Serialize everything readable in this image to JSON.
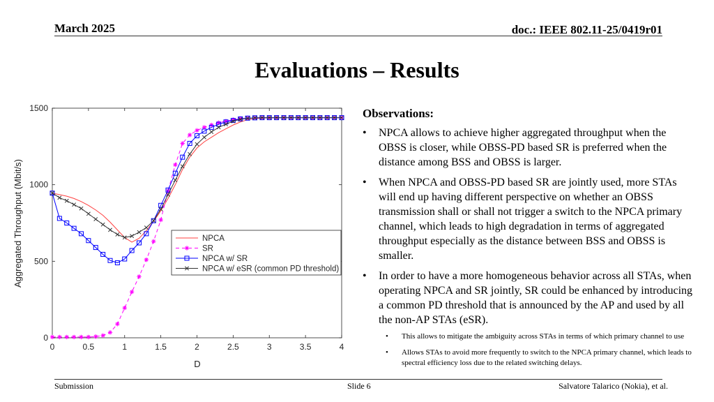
{
  "header": {
    "date": "March 2025",
    "doc_id": "doc.: IEEE 802.11-25/0419r01"
  },
  "title": "Evaluations – Results",
  "observations": {
    "heading": "Observations:",
    "bullets": [
      "NPCA allows to achieve higher aggregated throughput when the OBSS is closer, while OBSS-PD based SR is preferred when the distance among BSS and OBSS is larger.",
      "When NPCA and OBSS-PD based SR are jointly used, more STAs will end up having different perspective on whether an OBSS transmission shall or shall not trigger a switch to the NPCA primary channel, which leads to high degradation in terms of aggregated throughput especially as the distance between BSS and OBSS is smaller.",
      "In order to have a more homogeneous behavior across all STAs, when operating NPCA and SR jointly, SR could be enhanced by introducing a common PD threshold that is announced by the AP and used by all the non-AP STAs (eSR)."
    ],
    "sub_bullets": [
      "This allows to mitigate the ambiguity across STAs in terms of which primary channel to use",
      "Allows STAs to avoid more frequently to switch to the NPCA primary channel, which leads to spectral efficiency loss due to the related switching delays."
    ]
  },
  "footer": {
    "left": "Submission",
    "center": "Slide 6",
    "right": "Salvatore Talarico (Nokia), et al."
  },
  "chart_data": {
    "type": "line",
    "xlabel": "D",
    "ylabel": "Aggregated Throughput (Mbit/s)",
    "xlim": [
      0,
      4
    ],
    "ylim": [
      0,
      1500
    ],
    "xticks": [
      "0",
      "0.5",
      "1",
      "1.5",
      "2",
      "2.5",
      "3",
      "3.5",
      "4"
    ],
    "yticks": [
      "0",
      "500",
      "1000",
      "1500"
    ],
    "legend_position": "center-right",
    "x": [
      0,
      0.1,
      0.2,
      0.3,
      0.4,
      0.5,
      0.6,
      0.7,
      0.8,
      0.9,
      1.0,
      1.1,
      1.2,
      1.3,
      1.4,
      1.5,
      1.6,
      1.7,
      1.8,
      1.9,
      2.0,
      2.1,
      2.2,
      2.3,
      2.4,
      2.5,
      2.6,
      2.7,
      2.8,
      2.9,
      3.0,
      3.1,
      3.2,
      3.3,
      3.4,
      3.5,
      3.6,
      3.7,
      3.8,
      3.9,
      4.0
    ],
    "series": [
      {
        "name": "NPCA",
        "color": "#ff4040",
        "marker": "none",
        "dash": "solid",
        "values": [
          945,
          935,
          925,
          910,
          890,
          865,
          835,
          800,
          755,
          705,
          655,
          625,
          650,
          700,
          760,
          830,
          910,
          1000,
          1100,
          1180,
          1240,
          1280,
          1310,
          1340,
          1365,
          1390,
          1410,
          1425,
          1432,
          1435,
          1437,
          1438,
          1438,
          1438,
          1438,
          1438,
          1438,
          1438,
          1438,
          1438,
          1438
        ]
      },
      {
        "name": "SR",
        "color": "#ff00ff",
        "marker": "star",
        "dash": "dashed",
        "values": [
          5,
          5,
          5,
          5,
          5,
          5,
          8,
          15,
          35,
          90,
          195,
          300,
          400,
          510,
          630,
          770,
          960,
          1130,
          1270,
          1325,
          1355,
          1375,
          1390,
          1405,
          1415,
          1425,
          1432,
          1435,
          1437,
          1438,
          1438,
          1438,
          1438,
          1438,
          1438,
          1438,
          1438,
          1438,
          1438,
          1438,
          1438
        ]
      },
      {
        "name": "NPCA w/ SR",
        "color": "#0000ff",
        "marker": "square",
        "dash": "solid",
        "values": [
          945,
          780,
          750,
          715,
          680,
          635,
          590,
          545,
          505,
          490,
          515,
          570,
          620,
          680,
          765,
          865,
          965,
          1075,
          1180,
          1270,
          1320,
          1350,
          1375,
          1395,
          1410,
          1420,
          1430,
          1435,
          1437,
          1438,
          1438,
          1438,
          1438,
          1438,
          1438,
          1438,
          1438,
          1438,
          1438,
          1438,
          1438
        ]
      },
      {
        "name": "NPCA w/ eSR (common PD threshold)",
        "color": "#333333",
        "marker": "x",
        "dash": "solid",
        "values": [
          945,
          915,
          895,
          870,
          845,
          810,
          775,
          740,
          705,
          675,
          655,
          665,
          690,
          720,
          765,
          840,
          935,
          1030,
          1120,
          1200,
          1265,
          1310,
          1345,
          1375,
          1395,
          1415,
          1427,
          1434,
          1437,
          1438,
          1438,
          1438,
          1438,
          1438,
          1438,
          1438,
          1438,
          1438,
          1438,
          1438,
          1438
        ]
      }
    ]
  }
}
